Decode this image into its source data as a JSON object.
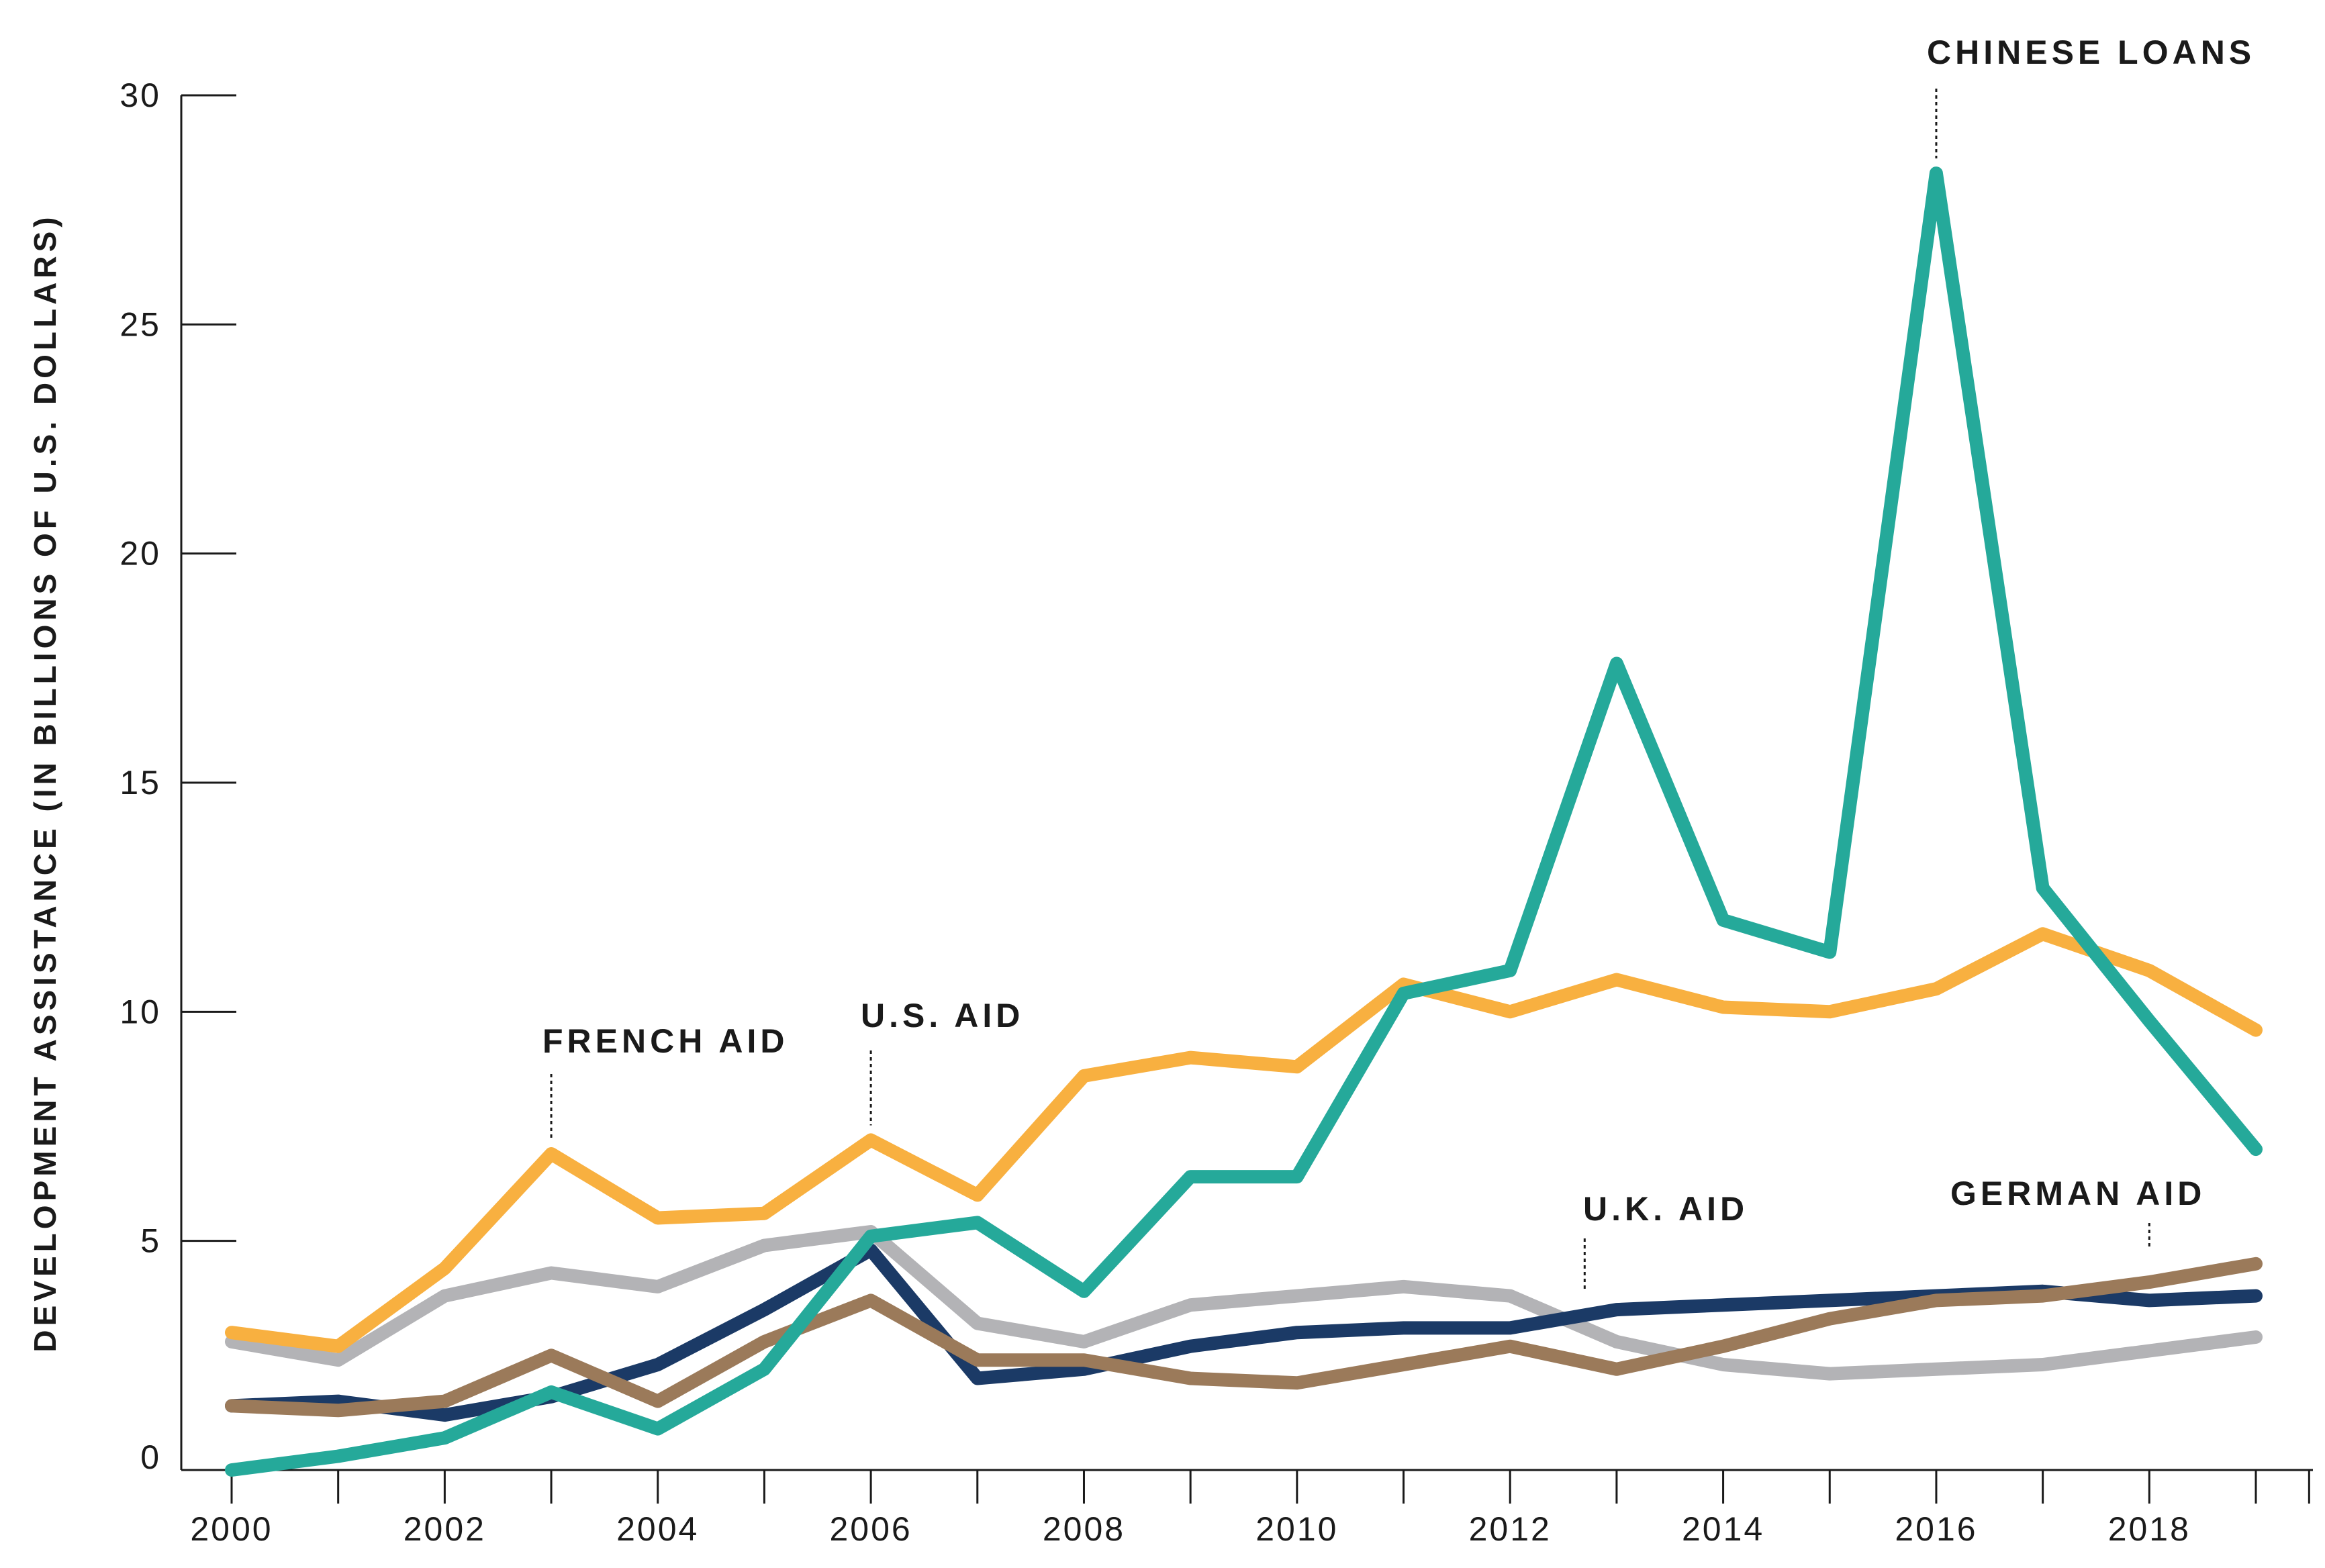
{
  "chart_data": {
    "type": "line",
    "title": "",
    "xlabel": "",
    "ylabel": "DEVELOPMENT ASSISTANCE (IN BILLIONS OF U.S. DOLLARS)",
    "xlim": [
      2000,
      2019.5
    ],
    "ylim": [
      0,
      30
    ],
    "x_ticks": [
      2000,
      2001,
      2002,
      2003,
      2004,
      2005,
      2006,
      2007,
      2008,
      2009,
      2010,
      2011,
      2012,
      2013,
      2014,
      2015,
      2016,
      2017,
      2018,
      2019
    ],
    "x_tick_labels": [
      "2000",
      "2002",
      "2004",
      "2006",
      "2008",
      "2010",
      "2012",
      "2014",
      "2016",
      "2018"
    ],
    "x_tick_label_values": [
      2000,
      2002,
      2004,
      2006,
      2008,
      2010,
      2012,
      2014,
      2016,
      2018
    ],
    "y_ticks": [
      0,
      5,
      10,
      15,
      20,
      25,
      30
    ],
    "y_tick_labels": [
      "0",
      "5",
      "10",
      "15",
      "20",
      "25",
      "30"
    ],
    "x": [
      2000,
      2001,
      2002,
      2003,
      2004,
      2005,
      2006,
      2007,
      2008,
      2009,
      2010,
      2011,
      2012,
      2013,
      2014,
      2015,
      2016,
      2017,
      2018,
      2019
    ],
    "series": [
      {
        "name": "U.K. aid",
        "color": "#b3b3b6",
        "values": [
          2.8,
          2.4,
          3.8,
          4.3,
          4.0,
          4.9,
          5.2,
          3.2,
          2.8,
          3.6,
          3.8,
          4.0,
          3.8,
          2.8,
          2.3,
          2.1,
          2.2,
          2.3,
          2.6,
          2.9
        ]
      },
      {
        "name": "U.S. aid",
        "color": "#1b3a66",
        "values": [
          1.4,
          1.5,
          1.2,
          1.6,
          2.3,
          3.5,
          4.8,
          2.0,
          2.2,
          2.7,
          3.0,
          3.1,
          3.1,
          3.5,
          3.6,
          3.7,
          3.8,
          3.9,
          3.7,
          3.8
        ]
      },
      {
        "name": "German aid",
        "color": "#9b7a5a",
        "values": [
          1.4,
          1.3,
          1.5,
          2.5,
          1.5,
          2.8,
          3.7,
          2.4,
          2.4,
          2.0,
          1.9,
          2.3,
          2.7,
          2.2,
          2.7,
          3.3,
          3.7,
          3.8,
          4.1,
          4.5
        ]
      },
      {
        "name": "French aid",
        "color": "#f8b040",
        "values": [
          3.0,
          2.7,
          4.4,
          6.9,
          5.5,
          5.6,
          7.2,
          6.0,
          8.6,
          9.0,
          8.8,
          10.6,
          10.0,
          10.7,
          10.1,
          10.0,
          10.5,
          11.7,
          10.9,
          9.6
        ]
      },
      {
        "name": "Chinese loans",
        "color": "#25a99a",
        "values": [
          0.0,
          0.3,
          0.7,
          1.7,
          0.9,
          2.2,
          5.1,
          5.4,
          3.9,
          6.4,
          6.4,
          10.4,
          10.9,
          17.6,
          12.0,
          11.3,
          28.3,
          12.7,
          9.8,
          7.0
        ]
      }
    ],
    "annotations": [
      {
        "text": "CHINESE LOANS",
        "series": "Chinese loans",
        "x": 2016.0,
        "y": 28.3
      },
      {
        "text": "FRENCH AID",
        "series": "French aid",
        "x": 2003.0,
        "y": 6.9
      },
      {
        "text": "U.S. AID",
        "series": "U.S. aid",
        "x": 2006.0,
        "y": 7.2
      },
      {
        "text": "U.K. AID",
        "series": "U.K. aid",
        "x": 2012.7,
        "y": 3.6
      },
      {
        "text": "GERMAN AID",
        "series": "German aid",
        "x": 2018.0,
        "y": 4.4
      }
    ]
  }
}
